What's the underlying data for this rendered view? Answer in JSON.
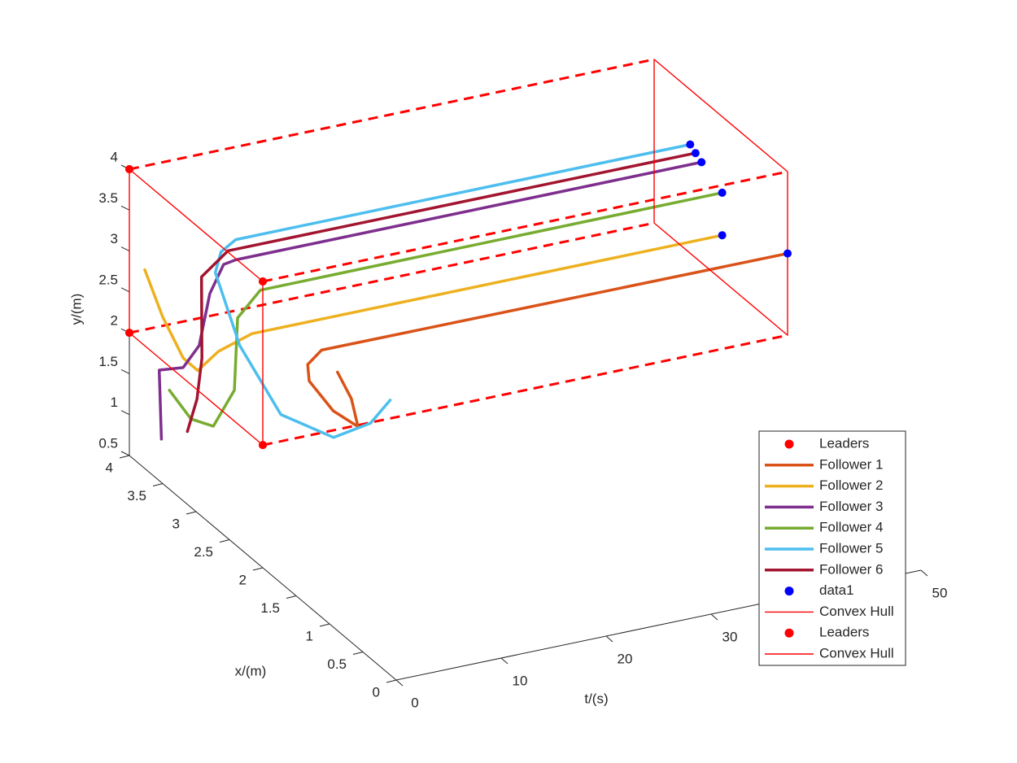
{
  "chart_data": {
    "type": "line3d",
    "xlabel": "t/(s)",
    "ylabel": "x/(m)",
    "zlabel": "y/(m)",
    "tlim": [
      0,
      50
    ],
    "tticks": [
      0,
      10,
      20,
      30,
      40,
      50
    ],
    "xlim": [
      0,
      4
    ],
    "xticks": [
      0,
      0.5,
      1,
      1.5,
      2,
      2.5,
      3,
      3.5,
      4
    ],
    "ylim": [
      0.5,
      4
    ],
    "yticks": [
      0.5,
      1,
      1.5,
      2,
      2.5,
      3,
      3.5,
      4
    ],
    "series": [
      {
        "name": "Leaders",
        "style": "points",
        "color": "#ff0000",
        "t": [
          0,
          0,
          0,
          0
        ],
        "x": [
          2,
          4,
          4,
          2
        ],
        "y": [
          2,
          2,
          4,
          4
        ]
      },
      {
        "name": "Follower 1",
        "style": "line",
        "color": "#D95319",
        "t": [
          0,
          0.5,
          1,
          1.5,
          2,
          2.5,
          5.6,
          50
        ],
        "x": [
          0.88,
          0.75,
          0.73,
          1.18,
          1.62,
          1.72,
          2.0,
          2
        ],
        "y": [
          3.66,
          3.41,
          3.07,
          2.94,
          2.99,
          3.11,
          3.01,
          3
        ]
      },
      {
        "name": "Follower 2",
        "style": "line",
        "color": "#EDB120",
        "t": [
          0,
          0.5,
          1,
          1.5,
          2.5,
          5.2,
          50
        ],
        "x": [
          3.77,
          3.58,
          3.35,
          3.21,
          3.06,
          2.98,
          2.98
        ],
        "y": [
          2.93,
          2.47,
          2.11,
          2.04,
          2.35,
          2.55,
          2.55
        ]
      },
      {
        "name": "Follower 3",
        "style": "line",
        "color": "#7E2F8E",
        "t": [
          0,
          0.3,
          0.8,
          1.5,
          2.2,
          3,
          5.7,
          50
        ],
        "x": [
          3.52,
          3.6,
          3.32,
          3.19,
          3.14,
          3.06,
          3.3,
          3.29
        ],
        "y": [
          1.03,
          1.81,
          2.02,
          2.36,
          3.01,
          3.4,
          3.22,
          3.23
        ]
      },
      {
        "name": "Follower 4",
        "style": "line",
        "color": "#77AC30",
        "t": [
          0,
          0.6,
          1.2,
          2,
          3,
          6,
          50
        ],
        "x": [
          3.4,
          3.17,
          2.93,
          2.74,
          2.85,
          2.98,
          2.98
        ],
        "y": [
          1.71,
          1.5,
          1.56,
          2.11,
          2.89,
          3.06,
          3.07
        ]
      },
      {
        "name": "Follower 5",
        "style": "line",
        "color": "#4DBEEE",
        "t": [
          0,
          0.4,
          0.9,
          1.4,
          2,
          2.6,
          3.2,
          6.7,
          50
        ],
        "x": [
          0.09,
          0.45,
          1.08,
          1.95,
          2.66,
          3.12,
          3.13,
          3.46,
          3.46
        ],
        "y": [
          3.86,
          3.32,
          2.7,
          2.37,
          2.71,
          3.27,
          3.5,
          3.33,
          3.33
        ]
      },
      {
        "name": "Follower 6",
        "style": "line",
        "color": "#A2142F",
        "t": [
          0,
          0.4,
          1,
          1.6,
          5.4,
          50
        ],
        "x": [
          3.13,
          3.05,
          3.07,
          3.17,
          3.37,
          3.38
        ],
        "y": [
          1.39,
          1.83,
          2.3,
          3.21,
          3.29,
          3.28
        ]
      },
      {
        "name": "data1",
        "style": "points",
        "color": "#0000ff",
        "t": [
          50,
          50,
          50,
          50,
          50,
          50
        ],
        "x": [
          2,
          2.98,
          3.29,
          2.98,
          3.46,
          3.38
        ],
        "y": [
          3,
          2.55,
          3.23,
          3.07,
          3.33,
          3.28
        ]
      },
      {
        "name": "Convex Hull",
        "style": "outline",
        "color": "#ff0000",
        "t": [
          0,
          0,
          0,
          0,
          0
        ],
        "x": [
          2,
          4,
          4,
          2,
          2
        ],
        "y": [
          2,
          2,
          4,
          4,
          2
        ]
      },
      {
        "name": "Leaders",
        "style": "points",
        "color": "#ff0000",
        "t": [
          0,
          0,
          0,
          0
        ],
        "x": [
          2,
          4,
          4,
          2
        ],
        "y": [
          2,
          2,
          4,
          4
        ]
      },
      {
        "name": "Convex Hull",
        "style": "outline",
        "color": "#ff0000",
        "t": [
          50,
          50,
          50,
          50,
          50
        ],
        "x": [
          2,
          4,
          4,
          2,
          2
        ],
        "y": [
          2,
          2,
          4,
          4,
          2
        ]
      }
    ]
  }
}
